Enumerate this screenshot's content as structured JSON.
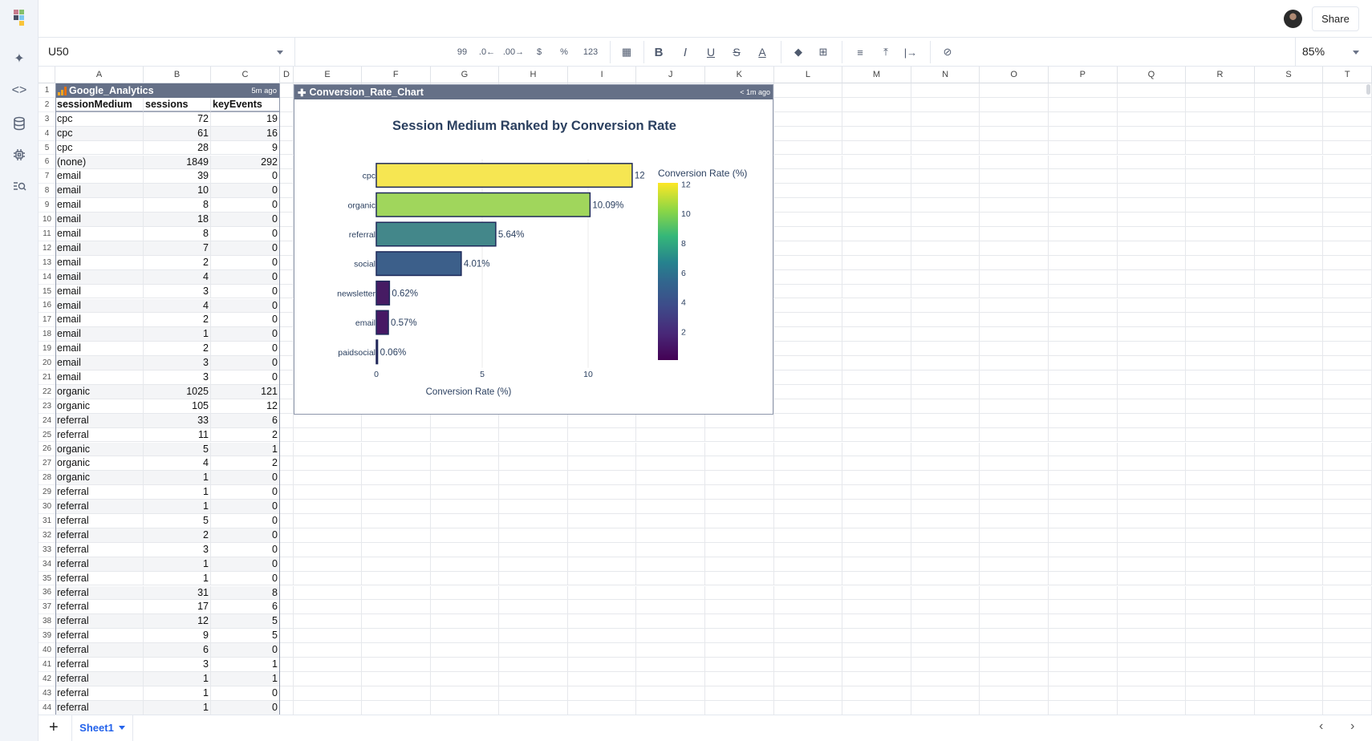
{
  "toolbar": {
    "name_box": "U50",
    "zoom": "85%",
    "buttons": [
      {
        "name": "decrease-decimal-quote-icon",
        "label": "99"
      },
      {
        "name": "decrease-decimal-icon",
        "label": ".0←"
      },
      {
        "name": "increase-decimal-icon",
        "label": ".00→"
      },
      {
        "name": "currency-format-icon",
        "label": "$"
      },
      {
        "name": "percent-format-icon",
        "label": "%"
      },
      {
        "name": "number-format-icon",
        "label": "123"
      },
      {
        "name": "date-format-icon",
        "label": "▦"
      },
      {
        "name": "bold-icon",
        "label": "B"
      },
      {
        "name": "italic-icon",
        "label": "I"
      },
      {
        "name": "underline-icon",
        "label": "U"
      },
      {
        "name": "strikethrough-icon",
        "label": "S"
      },
      {
        "name": "text-color-icon",
        "label": "A"
      },
      {
        "name": "fill-color-icon",
        "label": "◆"
      },
      {
        "name": "borders-icon",
        "label": "⊞"
      },
      {
        "name": "horizontal-align-icon",
        "label": "≡"
      },
      {
        "name": "vertical-align-top-icon",
        "label": "⤒"
      },
      {
        "name": "text-wrap-icon",
        "label": "|→"
      },
      {
        "name": "clear-formatting-icon",
        "label": "⊘"
      }
    ]
  },
  "header": {
    "share_label": "Share"
  },
  "columns": [
    "A",
    "B",
    "C",
    "D",
    "E",
    "F",
    "G",
    "H",
    "I",
    "J",
    "K",
    "L",
    "M",
    "N",
    "O",
    "P",
    "Q",
    "R",
    "S",
    "T"
  ],
  "table": {
    "title": "Google_Analytics",
    "updated": "5m ago",
    "headers": [
      "sessionMedium",
      "sessions",
      "keyEvents"
    ],
    "rows": [
      [
        "cpc",
        "72",
        "19"
      ],
      [
        "cpc",
        "61",
        "16"
      ],
      [
        "cpc",
        "28",
        "9"
      ],
      [
        "(none)",
        "1849",
        "292"
      ],
      [
        "email",
        "39",
        "0"
      ],
      [
        "email",
        "10",
        "0"
      ],
      [
        "email",
        "8",
        "0"
      ],
      [
        "email",
        "18",
        "0"
      ],
      [
        "email",
        "8",
        "0"
      ],
      [
        "email",
        "7",
        "0"
      ],
      [
        "email",
        "2",
        "0"
      ],
      [
        "email",
        "4",
        "0"
      ],
      [
        "email",
        "3",
        "0"
      ],
      [
        "email",
        "4",
        "0"
      ],
      [
        "email",
        "2",
        "0"
      ],
      [
        "email",
        "1",
        "0"
      ],
      [
        "email",
        "2",
        "0"
      ],
      [
        "email",
        "3",
        "0"
      ],
      [
        "email",
        "3",
        "0"
      ],
      [
        "organic",
        "1025",
        "121"
      ],
      [
        "organic",
        "105",
        "12"
      ],
      [
        "referral",
        "33",
        "6"
      ],
      [
        "referral",
        "11",
        "2"
      ],
      [
        "organic",
        "5",
        "1"
      ],
      [
        "organic",
        "4",
        "2"
      ],
      [
        "organic",
        "1",
        "0"
      ],
      [
        "referral",
        "1",
        "0"
      ],
      [
        "referral",
        "1",
        "0"
      ],
      [
        "referral",
        "5",
        "0"
      ],
      [
        "referral",
        "2",
        "0"
      ],
      [
        "referral",
        "3",
        "0"
      ],
      [
        "referral",
        "1",
        "0"
      ],
      [
        "referral",
        "1",
        "0"
      ],
      [
        "referral",
        "31",
        "8"
      ],
      [
        "referral",
        "17",
        "6"
      ],
      [
        "referral",
        "12",
        "5"
      ],
      [
        "referral",
        "9",
        "5"
      ],
      [
        "referral",
        "6",
        "0"
      ],
      [
        "referral",
        "3",
        "1"
      ],
      [
        "referral",
        "1",
        "1"
      ],
      [
        "referral",
        "1",
        "0"
      ],
      [
        "referral",
        "1",
        "0"
      ]
    ]
  },
  "chart_panel": {
    "name": "Conversion_Rate_Chart",
    "updated": "< 1m ago"
  },
  "chart_data": {
    "type": "bar",
    "orientation": "horizontal",
    "title": "Session Medium Ranked by Conversion Rate",
    "xlabel": "Conversion Rate (%)",
    "ylabel": "",
    "categories": [
      "cpc",
      "organic",
      "referral",
      "social",
      "newsletter",
      "email",
      "paidsocial"
    ],
    "values": [
      12.08,
      10.09,
      5.64,
      4.01,
      0.62,
      0.57,
      0.06
    ],
    "data_labels": [
      "12",
      "10.09%",
      "5.64%",
      "4.01%",
      "0.62%",
      "0.57%",
      "0.06%"
    ],
    "colors": [
      "#f6e652",
      "#a0d65c",
      "#43878a",
      "#3c5f8a",
      "#461b63",
      "#471864",
      "#440154"
    ],
    "xticks": [
      "0",
      "5",
      "10"
    ],
    "xtick_values": [
      0,
      5,
      10
    ],
    "grid": true,
    "colorbar": {
      "title": "Conversion Rate (%)",
      "ticks": [
        "2",
        "4",
        "6",
        "8",
        "10",
        "12"
      ],
      "tick_values": [
        2,
        4,
        6,
        8,
        10,
        12
      ],
      "range": [
        0.06,
        12.08
      ],
      "colorscale": "viridis",
      "placement": "right"
    }
  },
  "sheets": {
    "active": "Sheet1"
  }
}
